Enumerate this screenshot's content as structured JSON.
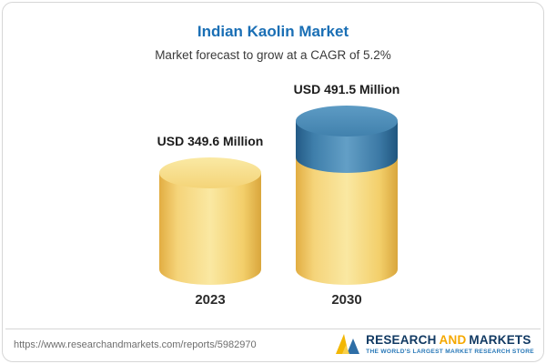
{
  "chart_data": {
    "type": "bar",
    "bar_style": "cylinder",
    "title": "Indian Kaolin Market",
    "subtitle": "Market forecast to grow at a CAGR of 5.2%",
    "categories": [
      "2023",
      "2030"
    ],
    "values": [
      349.6,
      491.5
    ],
    "value_labels": [
      "USD 349.6 Million",
      "USD 491.5 Million"
    ],
    "unit": "USD Million",
    "ylim": [
      0,
      500
    ],
    "grid": "off",
    "legend": "none",
    "colors": {
      "base_bar": "#f3cf6b",
      "growth_segment": "#3c79a5",
      "title_text": "#1a6fb5"
    },
    "notes": "2030 bar shows growth over 2023 as blue top segment"
  },
  "footer": {
    "url": "https://www.researchandmarkets.com/reports/5982970",
    "logo": {
      "research": "RESEARCH",
      "and": "AND",
      "markets": "MARKETS",
      "tagline": "THE WORLD'S LARGEST MARKET RESEARCH STORE"
    }
  }
}
